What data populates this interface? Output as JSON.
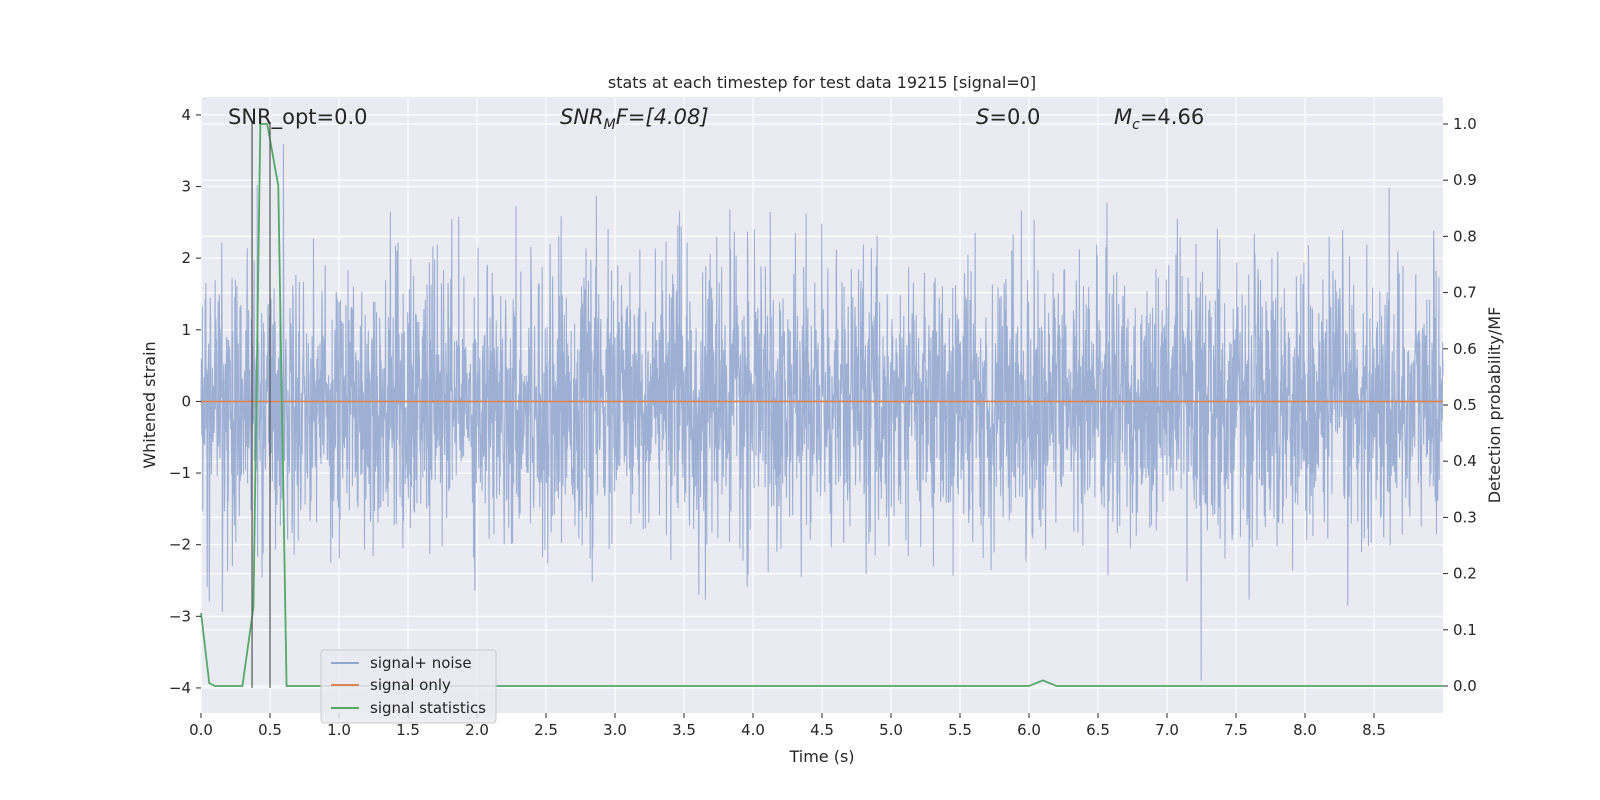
{
  "chart_data": {
    "type": "line",
    "title": "stats at each timestep for test data 19215 [signal=0]",
    "xlabel": "Time (s)",
    "ylabel": "Whitened strain",
    "ylabel_right": "Detection probability/MF",
    "xlim": [
      0.0,
      9.0
    ],
    "ylim": [
      -4.35,
      4.25
    ],
    "ylim_right": [
      -0.048,
      1.048
    ],
    "x_ticks": [
      0.0,
      0.5,
      1.0,
      1.5,
      2.0,
      2.5,
      3.0,
      3.5,
      4.0,
      4.5,
      5.0,
      5.5,
      6.0,
      6.5,
      7.0,
      7.5,
      8.0,
      8.5
    ],
    "x_tick_labels": [
      "0.0",
      "0.5",
      "1.0",
      "1.5",
      "2.0",
      "2.5",
      "3.0",
      "3.5",
      "4.0",
      "4.5",
      "5.0",
      "5.5",
      "6.0",
      "6.5",
      "7.0",
      "7.5",
      "8.0",
      "8.5"
    ],
    "y_ticks": [
      4,
      3,
      2,
      1,
      0,
      -1,
      -2,
      -3,
      -4
    ],
    "y_tick_labels": [
      "4",
      "3",
      "2",
      "1",
      "0",
      "−1",
      "−2",
      "−3",
      "−4"
    ],
    "y_ticks_right": [
      1.0,
      0.9,
      0.8,
      0.7,
      0.6,
      0.5,
      0.4,
      0.3,
      0.2,
      0.1,
      0.0
    ],
    "y_tick_labels_right": [
      "1.0",
      "0.9",
      "0.8",
      "0.7",
      "0.6",
      "0.5",
      "0.4",
      "0.3",
      "0.2",
      "0.1",
      "0.0"
    ],
    "grid": true,
    "legend_position": "lower-left",
    "annotations": {
      "snr_opt": "SNR_opt=0.0",
      "snr_mf_main": "SNR",
      "snr_mf_sub": "M",
      "snr_mf_rest": "F=[4.08]",
      "s_italic": "S",
      "s_rest": "=0.0",
      "mc_main": "M",
      "mc_sub": "c",
      "mc_rest": "=4.66"
    },
    "vertical_markers_x": [
      0.37,
      0.5
    ],
    "series": [
      {
        "name": "signal+ noise",
        "color": "#8fa6cf",
        "axis": "left",
        "noise_std": 0.95,
        "noise_seed": 19215
      },
      {
        "name": "signal only",
        "color": "#dd8452",
        "axis": "left",
        "x": [
          0.0,
          9.0
        ],
        "y": [
          0.0,
          0.0
        ]
      },
      {
        "name": "signal statistics",
        "color": "#55a868",
        "axis": "right",
        "x": [
          0.0,
          0.06,
          0.1,
          0.3,
          0.38,
          0.43,
          0.48,
          0.56,
          0.62,
          0.65,
          6.0,
          6.1,
          6.2,
          9.0
        ],
        "y": [
          0.13,
          0.005,
          0.0,
          0.0,
          0.14,
          1.0,
          1.0,
          0.89,
          0.0,
          0.0,
          0.0,
          0.01,
          0.0,
          0.0
        ]
      }
    ]
  }
}
